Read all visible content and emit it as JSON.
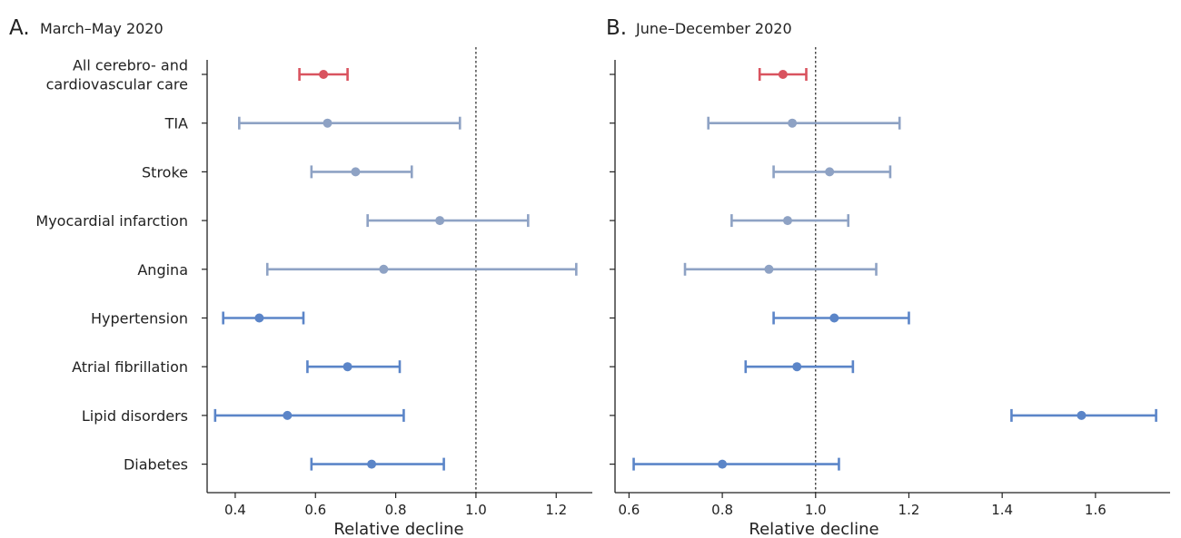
{
  "chart_data": [
    {
      "type": "forest",
      "panel_letter": "A.",
      "title": "March–May 2020",
      "xlabel": "Relative decline",
      "xlim": [
        0.33,
        1.29
      ],
      "xticks": [
        "0.4",
        "0.6",
        "0.8",
        "1.0",
        "1.2"
      ],
      "reference_line": 1.0,
      "categories": [
        "All cerebro- and\ncardiovascular care",
        "TIA",
        "Stroke",
        "Myocardial infarction",
        "Angina",
        "Hypertension",
        "Atrial fibrillation",
        "Lipid disorders",
        "Diabetes"
      ],
      "points": [
        {
          "category": "All cerebro- and\ncardiovascular care",
          "estimate": 0.62,
          "lower": 0.56,
          "upper": 0.68,
          "group": "overall"
        },
        {
          "category": "TIA",
          "estimate": 0.63,
          "lower": 0.41,
          "upper": 0.96,
          "group": "acute"
        },
        {
          "category": "Stroke",
          "estimate": 0.7,
          "lower": 0.59,
          "upper": 0.84,
          "group": "acute"
        },
        {
          "category": "Myocardial infarction",
          "estimate": 0.91,
          "lower": 0.73,
          "upper": 1.13,
          "group": "acute"
        },
        {
          "category": "Angina",
          "estimate": 0.77,
          "lower": 0.48,
          "upper": 1.25,
          "group": "acute"
        },
        {
          "category": "Hypertension",
          "estimate": 0.46,
          "lower": 0.37,
          "upper": 0.57,
          "group": "chronic"
        },
        {
          "category": "Atrial fibrillation",
          "estimate": 0.68,
          "lower": 0.58,
          "upper": 0.81,
          "group": "chronic"
        },
        {
          "category": "Lipid disorders",
          "estimate": 0.53,
          "lower": 0.35,
          "upper": 0.82,
          "group": "chronic"
        },
        {
          "category": "Diabetes",
          "estimate": 0.74,
          "lower": 0.59,
          "upper": 0.92,
          "group": "chronic"
        }
      ]
    },
    {
      "type": "forest",
      "panel_letter": "B.",
      "title": "June–December 2020",
      "xlabel": "Relative decline",
      "xlim": [
        0.57,
        1.76
      ],
      "xticks": [
        "0.6",
        "0.8",
        "1.0",
        "1.2",
        "1.4",
        "1.6"
      ],
      "reference_line": 1.0,
      "points": [
        {
          "category": "All cerebro- and\ncardiovascular care",
          "estimate": 0.93,
          "lower": 0.88,
          "upper": 0.98,
          "group": "overall"
        },
        {
          "category": "TIA",
          "estimate": 0.95,
          "lower": 0.77,
          "upper": 1.18,
          "group": "acute"
        },
        {
          "category": "Stroke",
          "estimate": 1.03,
          "lower": 0.91,
          "upper": 1.16,
          "group": "acute"
        },
        {
          "category": "Myocardial infarction",
          "estimate": 0.94,
          "lower": 0.82,
          "upper": 1.07,
          "group": "acute"
        },
        {
          "category": "Angina",
          "estimate": 0.9,
          "lower": 0.72,
          "upper": 1.13,
          "group": "acute"
        },
        {
          "category": "Hypertension",
          "estimate": 1.04,
          "lower": 0.91,
          "upper": 1.2,
          "group": "chronic"
        },
        {
          "category": "Atrial fibrillation",
          "estimate": 0.96,
          "lower": 0.85,
          "upper": 1.08,
          "group": "chronic"
        },
        {
          "category": "Lipid disorders",
          "estimate": 1.57,
          "lower": 1.42,
          "upper": 1.73,
          "group": "chronic"
        },
        {
          "category": "Diabetes",
          "estimate": 0.8,
          "lower": 0.61,
          "upper": 1.05,
          "group": "chronic"
        }
      ]
    }
  ],
  "colors": {
    "overall": "#d9535f",
    "acute": "#8ea2c4",
    "chronic": "#5b85c8",
    "axis": "#222222",
    "reference": "#222222"
  }
}
